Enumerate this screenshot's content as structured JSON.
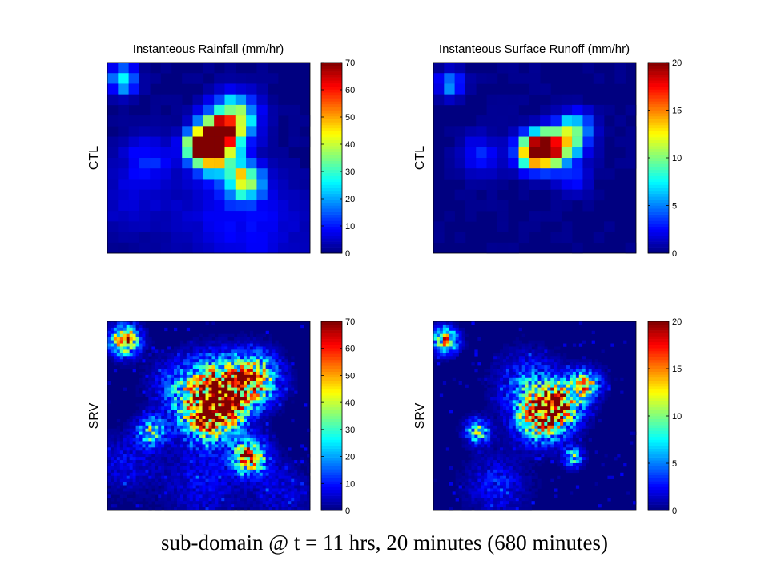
{
  "caption": "sub-domain @ t = 11 hrs, 20 minutes (680 minutes)",
  "colormap": "jet",
  "chart_data": [
    {
      "type": "heatmap",
      "title": "Instanteous Rainfall (mm/hr)",
      "ylabel": "CTL",
      "grid": false,
      "colorbar": {
        "ticks": [
          0,
          10,
          20,
          30,
          40,
          50,
          60,
          70
        ],
        "range": [
          0,
          70
        ]
      },
      "resolution": "coarse",
      "rows": 18,
      "cols": 19,
      "features": [
        {
          "row": 1.6,
          "col": 1.5,
          "radius": 0.9,
          "peak": 28
        },
        {
          "row": 5.2,
          "col": 11.8,
          "radius": 1.5,
          "peak": 36
        },
        {
          "row": 6.6,
          "col": 10.8,
          "radius": 1.2,
          "peak": 40
        },
        {
          "row": 7.4,
          "col": 9.8,
          "radius": 1.0,
          "peak": 60
        },
        {
          "row": 8.0,
          "col": 8.8,
          "radius": 1.0,
          "peak": 52
        },
        {
          "row": 8.6,
          "col": 10.2,
          "radius": 1.4,
          "peak": 34
        },
        {
          "row": 11.2,
          "col": 12.8,
          "radius": 1.1,
          "peak": 44
        },
        {
          "row": 9.0,
          "col": 3.8,
          "radius": 1.6,
          "peak": 9
        },
        {
          "row": 14.0,
          "col": 11.0,
          "radius": 3.5,
          "peak": 6
        },
        {
          "row": 13.0,
          "col": 2.0,
          "radius": 2.5,
          "peak": 5
        },
        {
          "row": 16.0,
          "col": 15.0,
          "radius": 3.0,
          "peak": 5
        }
      ]
    },
    {
      "type": "heatmap",
      "title": "Instanteous Surface Runoff (mm/hr)",
      "ylabel": "CTL",
      "grid": false,
      "colorbar": {
        "ticks": [
          0,
          5,
          10,
          15,
          20
        ],
        "range": [
          0,
          20
        ]
      },
      "resolution": "coarse",
      "rows": 18,
      "cols": 19,
      "features": [
        {
          "row": 2.0,
          "col": 1.6,
          "radius": 0.8,
          "peak": 6
        },
        {
          "row": 8.2,
          "col": 10.6,
          "radius": 1.0,
          "peak": 20
        },
        {
          "row": 8.4,
          "col": 9.4,
          "radius": 1.1,
          "peak": 14
        },
        {
          "row": 7.4,
          "col": 12.5,
          "radius": 1.3,
          "peak": 9
        },
        {
          "row": 6.0,
          "col": 13.5,
          "radius": 1.0,
          "peak": 5
        },
        {
          "row": 8.8,
          "col": 4.5,
          "radius": 1.3,
          "peak": 3
        },
        {
          "row": 11.0,
          "col": 13.0,
          "radius": 1.0,
          "peak": 3
        }
      ]
    },
    {
      "type": "heatmap",
      "title": "",
      "ylabel": "SRV",
      "grid": false,
      "colorbar": {
        "ticks": [
          0,
          10,
          20,
          30,
          40,
          50,
          60,
          70
        ],
        "range": [
          0,
          70
        ]
      },
      "resolution": "fine",
      "rows": 60,
      "cols": 64,
      "features": [
        {
          "row": 6.0,
          "col": 5.5,
          "radius": 3.0,
          "peak": 60
        },
        {
          "row": 18.0,
          "col": 46.0,
          "radius": 5.0,
          "peak": 55
        },
        {
          "row": 25.0,
          "col": 38.0,
          "radius": 5.0,
          "peak": 60
        },
        {
          "row": 30.0,
          "col": 32.0,
          "radius": 5.5,
          "peak": 60
        },
        {
          "row": 22.0,
          "col": 28.0,
          "radius": 6.0,
          "peak": 26
        },
        {
          "row": 17.0,
          "col": 34.0,
          "radius": 5.0,
          "peak": 22
        },
        {
          "row": 43.0,
          "col": 45.0,
          "radius": 3.5,
          "peak": 60
        },
        {
          "row": 35.0,
          "col": 14.0,
          "radius": 3.0,
          "peak": 36
        },
        {
          "row": 51.0,
          "col": 30.0,
          "radius": 8.0,
          "peak": 8
        },
        {
          "row": 45.0,
          "col": 6.0,
          "radius": 6.0,
          "peak": 8
        },
        {
          "row": 54.0,
          "col": 55.0,
          "radius": 6.0,
          "peak": 7
        },
        {
          "row": 20.0,
          "col": 20.0,
          "radius": 5.0,
          "peak": 7
        }
      ]
    },
    {
      "type": "heatmap",
      "title": "",
      "ylabel": "SRV",
      "grid": false,
      "colorbar": {
        "ticks": [
          0,
          5,
          10,
          15,
          20
        ],
        "range": [
          0,
          20
        ]
      },
      "resolution": "fine",
      "rows": 60,
      "cols": 64,
      "features": [
        {
          "row": 6.0,
          "col": 3.8,
          "radius": 2.6,
          "peak": 14
        },
        {
          "row": 30.0,
          "col": 34.0,
          "radius": 5.0,
          "peak": 18
        },
        {
          "row": 26.0,
          "col": 40.0,
          "radius": 4.5,
          "peak": 15
        },
        {
          "row": 20.0,
          "col": 48.0,
          "radius": 3.0,
          "peak": 12
        },
        {
          "row": 20.0,
          "col": 30.0,
          "radius": 6.0,
          "peak": 5
        },
        {
          "row": 43.0,
          "col": 44.0,
          "radius": 2.0,
          "peak": 9
        },
        {
          "row": 35.0,
          "col": 14.0,
          "radius": 2.5,
          "peak": 10
        },
        {
          "row": 52.0,
          "col": 20.0,
          "radius": 6.0,
          "peak": 3
        }
      ]
    }
  ]
}
